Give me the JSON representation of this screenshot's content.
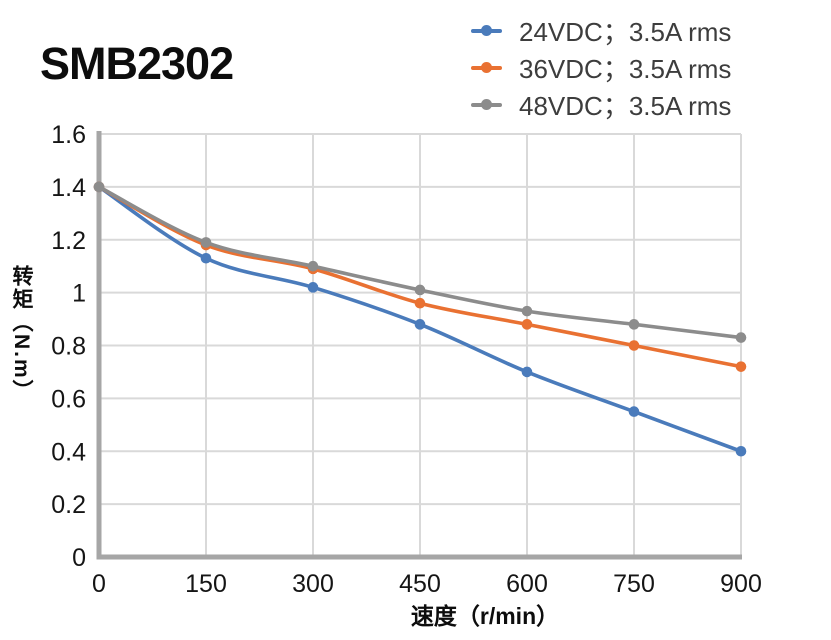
{
  "chart_data": {
    "type": "line",
    "title": "SMB2302",
    "xlabel": "速度（r/min）",
    "ylabel": "转矩（N.m）",
    "x": [
      0,
      150,
      300,
      450,
      600,
      750,
      900
    ],
    "xticks": [
      0,
      150,
      300,
      450,
      600,
      750,
      900
    ],
    "yticks": [
      0,
      0.2,
      0.4,
      0.6,
      0.8,
      1,
      1.2,
      1.4,
      1.6
    ],
    "xlim": [
      0,
      900
    ],
    "ylim": [
      0,
      1.6
    ],
    "grid": true,
    "smooth_lines": true,
    "legend_position": "top-right",
    "series": [
      {
        "id": "24vdc",
        "name": "24VDC；3.5A rms",
        "color": "#4A7BBB",
        "values": [
          1.4,
          1.13,
          1.02,
          0.88,
          0.7,
          0.55,
          0.4
        ]
      },
      {
        "id": "36vdc",
        "name": "36VDC；3.5A rms",
        "color": "#E97132",
        "values": [
          1.4,
          1.18,
          1.09,
          0.96,
          0.88,
          0.8,
          0.72
        ]
      },
      {
        "id": "48vdc",
        "name": "48VDC；3.5A rms",
        "color": "#8C8C8C",
        "values": [
          1.4,
          1.19,
          1.1,
          1.01,
          0.93,
          0.88,
          0.83
        ]
      }
    ],
    "colors": {
      "gridline": "#D9D9D9",
      "axis": "#A6A6A6",
      "tick_text": "#151515",
      "legend_text": "#3d3d3d",
      "title_text": "#0d0d0d"
    }
  }
}
